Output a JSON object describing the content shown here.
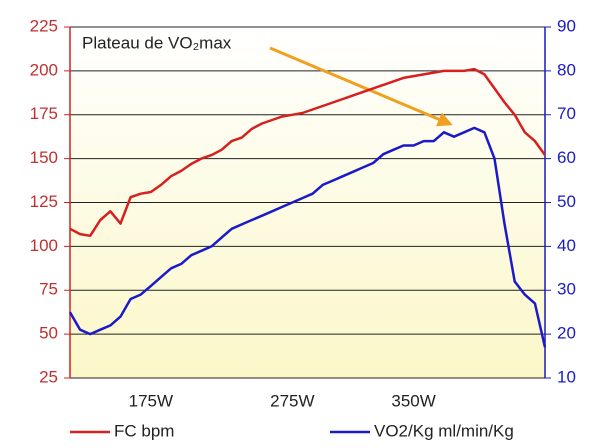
{
  "chart_data": {
    "type": "line",
    "annotation": "Plateau de VO₂max",
    "categories": [
      null,
      null,
      null,
      null,
      null,
      null,
      null,
      null,
      "175W",
      null,
      null,
      null,
      null,
      null,
      null,
      null,
      null,
      null,
      null,
      null,
      null,
      null,
      "275W",
      null,
      null,
      null,
      null,
      null,
      null,
      null,
      null,
      null,
      null,
      null,
      "350W",
      null,
      null,
      null,
      null,
      null,
      null,
      null,
      null,
      null,
      null,
      null,
      null,
      null
    ],
    "series": [
      {
        "name": "FC bpm",
        "color": "#d62020",
        "values": [
          110,
          107,
          106,
          115,
          120,
          113,
          128,
          130,
          131,
          135,
          140,
          143,
          147,
          150,
          152,
          155,
          160,
          162,
          167,
          170,
          172,
          174,
          175,
          176,
          178,
          180,
          182,
          184,
          186,
          188,
          190,
          192,
          194,
          196,
          197,
          198,
          199,
          200,
          200,
          200,
          201,
          198,
          190,
          182,
          175,
          165,
          160,
          152
        ]
      },
      {
        "name": "VO2/Kg ml/min/Kg",
        "color": "#1a1ac8",
        "axis": "y2",
        "values": [
          25,
          21,
          20,
          21,
          22,
          24,
          28,
          29,
          31,
          33,
          35,
          36,
          38,
          39,
          40,
          42,
          44,
          45,
          46,
          47,
          48,
          49,
          50,
          51,
          52,
          54,
          55,
          56,
          57,
          58,
          59,
          61,
          62,
          63,
          63,
          64,
          64,
          66,
          65,
          66,
          67,
          66,
          60,
          45,
          32,
          29,
          27,
          17
        ]
      }
    ],
    "ylim": [
      25,
      225
    ],
    "yticks": [
      25,
      50,
      75,
      100,
      125,
      150,
      175,
      200,
      225
    ],
    "y2lim": [
      10,
      90
    ],
    "y2ticks": [
      10,
      20,
      30,
      40,
      50,
      60,
      70,
      80,
      90
    ],
    "grid": true,
    "legend": "bottom"
  }
}
